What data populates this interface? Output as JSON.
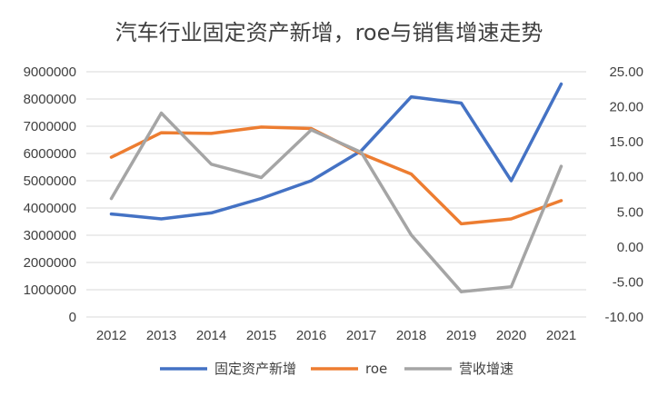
{
  "chart_data": {
    "type": "line",
    "title": "汽车行业固定资产新增，roe与销售增速走势",
    "categories": [
      "2012",
      "2013",
      "2014",
      "2015",
      "2016",
      "2017",
      "2018",
      "2019",
      "2020",
      "2021"
    ],
    "y_left": {
      "ylim": [
        0,
        9000000
      ],
      "ticks": [
        0,
        1000000,
        2000000,
        3000000,
        4000000,
        5000000,
        6000000,
        7000000,
        8000000,
        9000000
      ],
      "tick_labels": [
        "0",
        "1000000",
        "2000000",
        "3000000",
        "4000000",
        "5000000",
        "6000000",
        "7000000",
        "8000000",
        "9000000"
      ]
    },
    "y_right": {
      "ylim": [
        -10,
        25
      ],
      "ticks": [
        -10,
        -5,
        0,
        5,
        10,
        15,
        20,
        25
      ],
      "tick_labels": [
        "-10.00",
        "-5.00",
        "0.00",
        "5.00",
        "10.00",
        "15.00",
        "20.00",
        "25.00"
      ]
    },
    "grid": true,
    "legend_position": "bottom",
    "series": [
      {
        "name": "固定资产新增",
        "axis": "left",
        "color": "#4472C4",
        "values": [
          3780000,
          3600000,
          3820000,
          4350000,
          5000000,
          6100000,
          8080000,
          7850000,
          5000000,
          8550000
        ]
      },
      {
        "name": "roe",
        "axis": "right",
        "color": "#ED7D31",
        "values": [
          12.8,
          16.3,
          16.2,
          17.1,
          16.9,
          13.3,
          10.4,
          3.3,
          4.0,
          6.6
        ]
      },
      {
        "name": "营收增速",
        "axis": "right",
        "color": "#A5A5A5",
        "values": [
          6.9,
          19.1,
          11.8,
          9.9,
          16.7,
          13.5,
          1.7,
          -6.4,
          -5.7,
          11.5
        ]
      }
    ]
  }
}
